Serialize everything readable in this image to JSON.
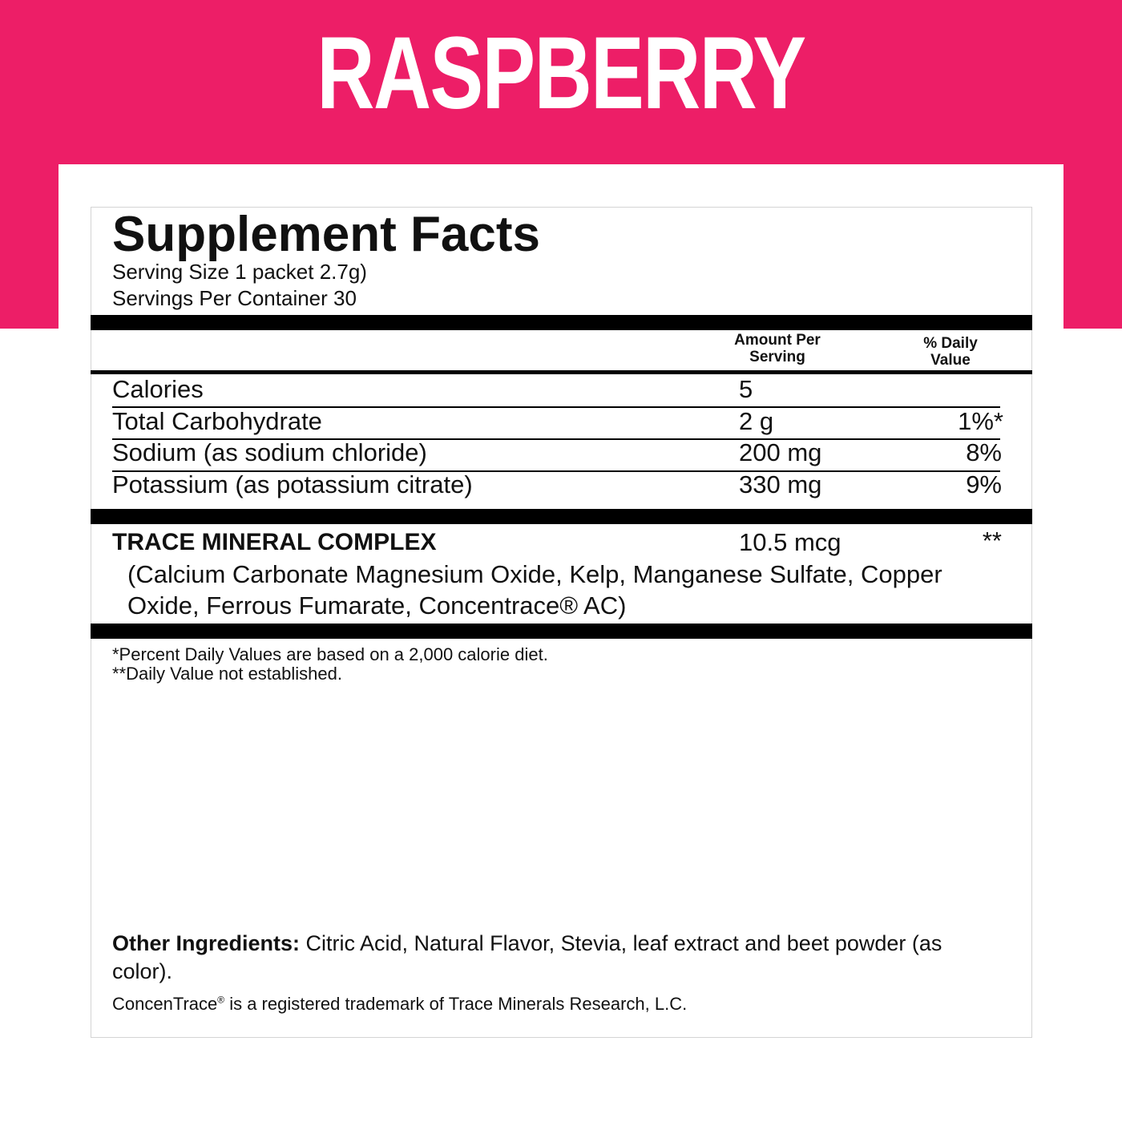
{
  "header": {
    "flavor": "RASPBERRY",
    "brand_color": "#ED1E67"
  },
  "facts": {
    "title": "Supplement Facts",
    "serving_size": "Serving Size 1 packet 2.7g)",
    "servings_per_container": "Servings Per Container 30",
    "col_amount_1": "Amount Per",
    "col_amount_2": "Serving",
    "col_dv_1": "% Daily",
    "col_dv_2": "Value",
    "rows": [
      {
        "name": "Calories",
        "amount": "5",
        "dv": ""
      },
      {
        "name": "Total Carbohydrate",
        "amount": "2 g",
        "dv": "1%*"
      },
      {
        "name": "Sodium (as sodium chloride)",
        "amount": "200 mg",
        "dv": "8%"
      },
      {
        "name": "Potassium (as potassium citrate)",
        "amount": "330 mg",
        "dv": "9%"
      }
    ],
    "complex": {
      "name": "TRACE MINERAL COMPLEX",
      "amount": "10.5 mcg",
      "dv": "**",
      "detail_1": "(Calcium Carbonate Magnesium Oxide, Kelp, Manganese Sulfate, Copper",
      "detail_2": "Oxide, Ferrous Fumarate, Concentrace® AC)"
    },
    "footnote_1": "*Percent Daily Values are based on a 2,000 calorie diet.",
    "footnote_2": "**Daily Value not established.",
    "other_label": "Other Ingredients:",
    "other_1": " Citric Acid, Natural Flavor, Stevia, leaf extract and beet powder (as",
    "other_2": "color).",
    "trademark_a": "ConcenTrace",
    "trademark_reg": "®",
    "trademark_b": " is a registered trademark of Trace Minerals Research, L.C."
  }
}
